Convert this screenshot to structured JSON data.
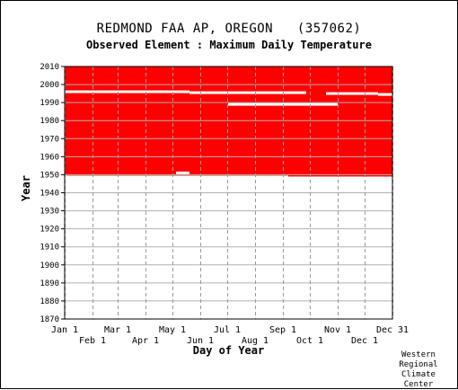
{
  "chart_data": {
    "type": "heatmap",
    "title": "REDMOND FAA AP, OREGON   (357062)",
    "subtitle": "Observed Element : Maximum Daily Temperature",
    "xlabel": "Day of Year",
    "ylabel": "Year",
    "xlim": [
      1,
      366
    ],
    "ylim": [
      1870,
      2010
    ],
    "x_ticks_top_row": [
      {
        "label": "Jan 1",
        "day": 1
      },
      {
        "label": "Mar 1",
        "day": 60
      },
      {
        "label": "May 1",
        "day": 121
      },
      {
        "label": "Jul 1",
        "day": 182
      },
      {
        "label": "Sep 1",
        "day": 244
      },
      {
        "label": "Nov 1",
        "day": 305
      },
      {
        "label": "Dec 31",
        "day": 366
      }
    ],
    "x_ticks_bottom_row": [
      {
        "label": "Feb 1",
        "day": 32
      },
      {
        "label": "Apr 1",
        "day": 91
      },
      {
        "label": "Jun 1",
        "day": 152
      },
      {
        "label": "Aug 1",
        "day": 213
      },
      {
        "label": "Oct 1",
        "day": 274
      },
      {
        "label": "Dec 1",
        "day": 335
      }
    ],
    "y_ticks": [
      "1870",
      "1880",
      "1890",
      "1900",
      "1910",
      "1920",
      "1930",
      "1940",
      "1950",
      "1960",
      "1970",
      "1980",
      "1990",
      "2000",
      "2010"
    ],
    "grid": true,
    "data_color": "#ff0000",
    "coverage": {
      "start_year": 1949,
      "end_year": 2010,
      "description": "data present (red) for nearly all days 1949-2010"
    },
    "gaps": [
      {
        "year": 1996,
        "day_start": 1,
        "day_end": 140
      },
      {
        "year": 1995.5,
        "day_start": 140,
        "day_end": 270
      },
      {
        "year": 1995,
        "day_start": 292,
        "day_end": 350
      },
      {
        "year": 1994.5,
        "day_start": 350,
        "day_end": 366
      },
      {
        "year": 1989,
        "day_start": 183,
        "day_end": 305
      },
      {
        "year": 1951,
        "day_start": 125,
        "day_end": 140
      },
      {
        "year": 1949,
        "day_start": 1,
        "day_end": 3
      },
      {
        "year": 1949,
        "day_start": 1,
        "day_end": 250
      }
    ]
  },
  "credit": [
    "Western",
    "Regional",
    "Climate",
    "Center"
  ]
}
